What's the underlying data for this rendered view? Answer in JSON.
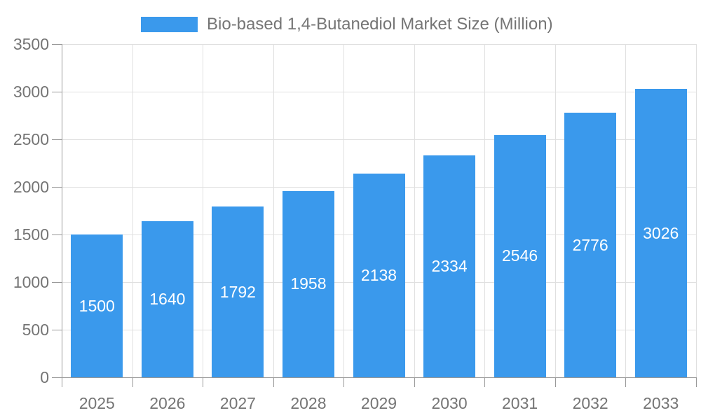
{
  "legend": {
    "label": "Bio-based 1,4-Butanediol Market Size (Million)"
  },
  "chart_data": {
    "type": "bar",
    "title": "Bio-based 1,4-Butanediol Market Size (Million)",
    "series_name": "Bio-based 1,4-Butanediol Market Size (Million)",
    "categories": [
      "2025",
      "2026",
      "2027",
      "2028",
      "2029",
      "2030",
      "2031",
      "2032",
      "2033"
    ],
    "values": [
      1500,
      1640,
      1792,
      1958,
      2138,
      2334,
      2546,
      2776,
      3026
    ],
    "bar_labels": [
      "1500",
      "1640",
      "1792",
      "1958",
      "2138",
      "2334",
      "2546",
      "2776",
      "3026"
    ],
    "xlabel": "",
    "ylabel": "",
    "ylim": [
      0,
      3500
    ],
    "ytick_step": 500,
    "yticks": [
      "0",
      "500",
      "1000",
      "1500",
      "2000",
      "2500",
      "3000",
      "3500"
    ],
    "grid": true,
    "legend_position": "top",
    "colors": {
      "bar": "#3A99EC",
      "grid": "#E0E0E0",
      "axis": "#999999",
      "text": "#757575",
      "bar_label": "#FFFFFF"
    }
  }
}
